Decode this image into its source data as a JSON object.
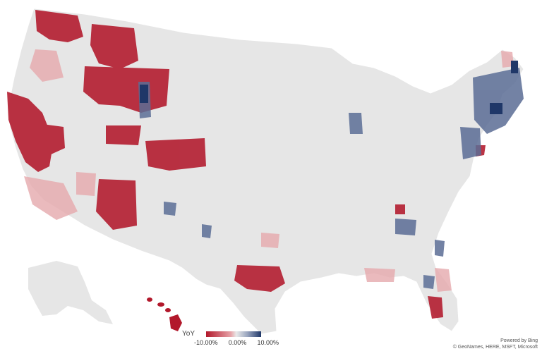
{
  "legend": {
    "title": "YoY",
    "labels": [
      "-10.00%",
      "0.00%",
      "10.00%"
    ],
    "colors": {
      "negative": "#b2182b",
      "neutral": "#e9e9e9",
      "positive": "#1f3768"
    }
  },
  "attribution": {
    "line1": "Powered by Bing",
    "line2": "© GeoNames, HERE, MSFT, Microsoft"
  },
  "map": {
    "region": "United States counties",
    "base_color": "#e6e6e6",
    "border_color": "#ffffff"
  }
}
